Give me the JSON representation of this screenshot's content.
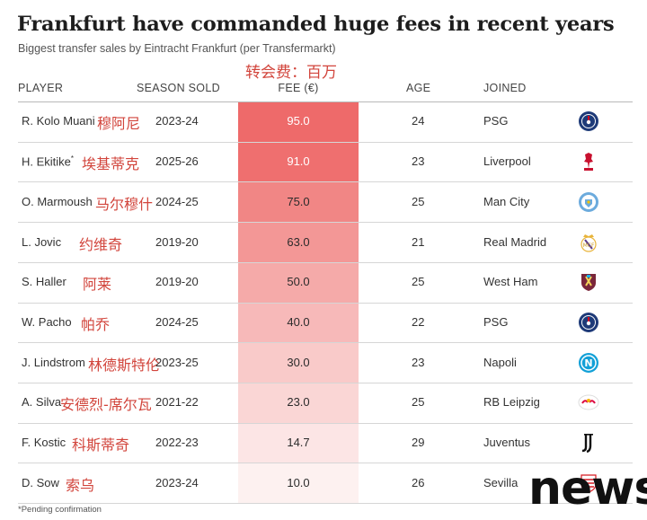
{
  "title": "Frankfurt have commanded huge fees in recent years",
  "subtitle": "Biggest transfer sales by Eintracht Frankfurt (per Transfermarkt)",
  "fee_unit_cn": "转会费：百万",
  "headers": {
    "player": "PLAYER",
    "season": "SEASON SOLD",
    "fee": "FEE (€)",
    "age": "AGE",
    "joined": "JOINED"
  },
  "rows": [
    {
      "player": "R. Kolo Muani",
      "pending": "",
      "player_cn": "穆阿尼",
      "season": "2023-24",
      "fee": "95.0",
      "age": "24",
      "joined": "PSG",
      "logo": "psg-crest-icon"
    },
    {
      "player": "H. Ekitike",
      "pending": "*",
      "player_cn": "埃基蒂克",
      "season": "2025-26",
      "fee": "91.0",
      "age": "23",
      "joined": "Liverpool",
      "logo": "liverpool-crest-icon"
    },
    {
      "player": "O. Marmoush",
      "pending": "",
      "player_cn": "马尔穆什",
      "season": "2024-25",
      "fee": "75.0",
      "age": "25",
      "joined": "Man City",
      "logo": "man-city-crest-icon"
    },
    {
      "player": "L. Jovic",
      "pending": "",
      "player_cn": "约维奇",
      "season": "2019-20",
      "fee": "63.0",
      "age": "21",
      "joined": "Real Madrid",
      "logo": "real-madrid-crest-icon"
    },
    {
      "player": "S. Haller",
      "pending": "",
      "player_cn": "阿莱",
      "season": "2019-20",
      "fee": "50.0",
      "age": "25",
      "joined": "West Ham",
      "logo": "west-ham-crest-icon"
    },
    {
      "player": "W. Pacho",
      "pending": "",
      "player_cn": "帕乔",
      "season": "2024-25",
      "fee": "40.0",
      "age": "22",
      "joined": "PSG",
      "logo": "psg-crest-icon"
    },
    {
      "player": "J. Lindstrom",
      "pending": "",
      "player_cn": "林德斯特伦",
      "season": "2023-25",
      "fee": "30.0",
      "age": "23",
      "joined": "Napoli",
      "logo": "napoli-crest-icon"
    },
    {
      "player": "A. Silva",
      "pending": "",
      "player_cn": "安德烈-席尔瓦",
      "season": "2021-22",
      "fee": "23.0",
      "age": "25",
      "joined": "RB Leipzig",
      "logo": "rb-leipzig-crest-icon"
    },
    {
      "player": "F. Kostic",
      "pending": "",
      "player_cn": "科斯蒂奇",
      "season": "2022-23",
      "fee": "14.7",
      "age": "29",
      "joined": "Juventus",
      "logo": "juventus-crest-icon"
    },
    {
      "player": "D. Sow",
      "pending": "",
      "player_cn": "索乌",
      "season": "2023-24",
      "fee": "10.0",
      "age": "26",
      "joined": "Sevilla",
      "logo": "sevilla-crest-icon"
    }
  ],
  "footnote": "*Pending confirmation",
  "watermark": "news",
  "colors": {
    "heat_high": "#ee6a6a",
    "heat_low": "#fdf0ef",
    "cn_annotation": "#d2453c",
    "psg": "#1e3a78",
    "liverpool": "#c8102e",
    "man_city": "#6cabdd",
    "napoli": "#12a0d7"
  },
  "chart_data": {
    "type": "table",
    "title": "Frankfurt have commanded huge fees in recent years",
    "subtitle": "Biggest transfer sales by Eintracht Frankfurt (per Transfermarkt)",
    "columns": [
      "PLAYER",
      "SEASON SOLD",
      "FEE (€)",
      "AGE",
      "JOINED"
    ],
    "heat_column": "FEE (€)",
    "values": [
      95.0,
      91.0,
      75.0,
      63.0,
      50.0,
      40.0,
      30.0,
      23.0,
      14.7,
      10.0
    ]
  }
}
